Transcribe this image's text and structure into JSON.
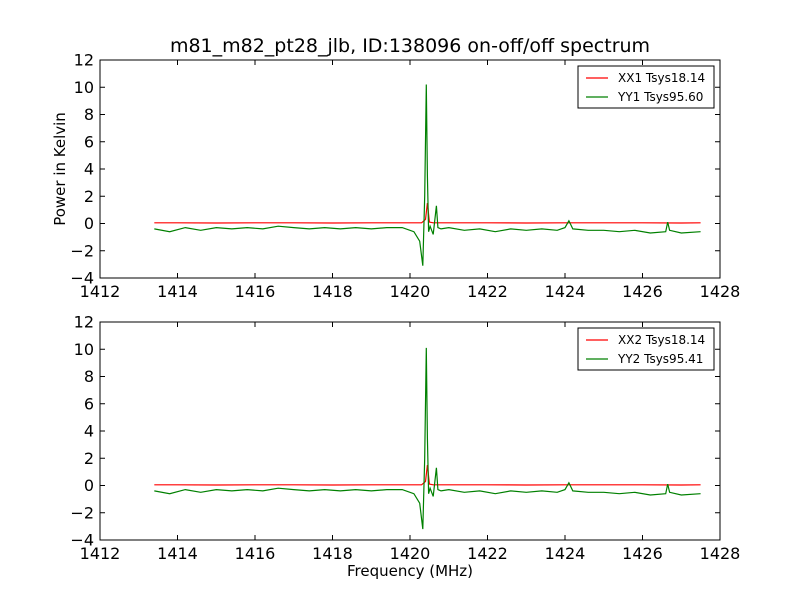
{
  "figure": {
    "title": "m81_m82_pt28_jlb, ID:138096 on-off/off spectrum",
    "xlabel": "Frequency (MHz)",
    "ylabel": "Power in Kelvin"
  },
  "chart_data": [
    {
      "type": "line",
      "title": "m81_m82_pt28_jlb, ID:138096 on-off/off spectrum",
      "xlabel": "",
      "ylabel": "Power in Kelvin",
      "xlim": [
        1412,
        1428
      ],
      "ylim": [
        -4,
        12
      ],
      "xticks": [
        "1412",
        "1414",
        "1416",
        "1418",
        "1420",
        "1422",
        "1424",
        "1426",
        "1428"
      ],
      "yticks": [
        "−4",
        "−2",
        "0",
        "2",
        "4",
        "6",
        "8",
        "10",
        "12"
      ],
      "legend": "top-right",
      "grid": false,
      "series": [
        {
          "name": "XX1 Tsys18.14",
          "color": "#ff0000",
          "x": [
            1413.4,
            1414.0,
            1415.0,
            1416.0,
            1417.0,
            1418.0,
            1419.0,
            1420.0,
            1420.3,
            1420.4,
            1420.45,
            1420.5,
            1420.6,
            1421.0,
            1422.0,
            1423.0,
            1424.0,
            1425.0,
            1426.0,
            1427.0,
            1427.5
          ],
          "y": [
            0.05,
            0.05,
            0.04,
            0.05,
            0.05,
            0.04,
            0.05,
            0.05,
            0.05,
            0.3,
            1.5,
            0.1,
            0.05,
            0.05,
            0.05,
            0.04,
            0.05,
            0.05,
            0.05,
            0.04,
            0.05
          ]
        },
        {
          "name": "YY1 Tsys95.60",
          "color": "#008000",
          "x": [
            1413.4,
            1413.8,
            1414.2,
            1414.6,
            1415.0,
            1415.4,
            1415.8,
            1416.2,
            1416.6,
            1417.0,
            1417.4,
            1417.8,
            1418.2,
            1418.6,
            1419.0,
            1419.4,
            1419.8,
            1420.1,
            1420.25,
            1420.33,
            1420.38,
            1420.42,
            1420.45,
            1420.48,
            1420.52,
            1420.6,
            1420.68,
            1420.72,
            1420.8,
            1421.0,
            1421.4,
            1421.8,
            1422.2,
            1422.6,
            1423.0,
            1423.4,
            1423.8,
            1424.0,
            1424.1,
            1424.2,
            1424.6,
            1425.0,
            1425.4,
            1425.8,
            1426.2,
            1426.6,
            1426.65,
            1426.7,
            1427.0,
            1427.5
          ],
          "y": [
            -0.4,
            -0.6,
            -0.3,
            -0.5,
            -0.3,
            -0.4,
            -0.3,
            -0.4,
            -0.2,
            -0.3,
            -0.4,
            -0.3,
            -0.4,
            -0.3,
            -0.4,
            -0.3,
            -0.3,
            -0.6,
            -1.3,
            -3.1,
            2.0,
            10.2,
            3.5,
            -0.6,
            -0.2,
            -0.8,
            1.3,
            -0.3,
            -0.4,
            -0.3,
            -0.5,
            -0.4,
            -0.6,
            -0.4,
            -0.5,
            -0.4,
            -0.5,
            -0.3,
            0.2,
            -0.4,
            -0.5,
            -0.5,
            -0.6,
            -0.5,
            -0.7,
            -0.6,
            0.1,
            -0.5,
            -0.7,
            -0.6
          ]
        }
      ]
    },
    {
      "type": "line",
      "title": "",
      "xlabel": "Frequency (MHz)",
      "ylabel": "",
      "xlim": [
        1412,
        1428
      ],
      "ylim": [
        -4,
        12
      ],
      "xticks": [
        "1412",
        "1414",
        "1416",
        "1418",
        "1420",
        "1422",
        "1424",
        "1426",
        "1428"
      ],
      "yticks": [
        "−4",
        "−2",
        "0",
        "2",
        "4",
        "6",
        "8",
        "10",
        "12"
      ],
      "legend": "top-right",
      "grid": false,
      "series": [
        {
          "name": "XX2 Tsys18.14",
          "color": "#ff0000",
          "x": [
            1413.4,
            1414.0,
            1415.0,
            1416.0,
            1417.0,
            1418.0,
            1419.0,
            1420.0,
            1420.3,
            1420.4,
            1420.45,
            1420.5,
            1420.6,
            1421.0,
            1422.0,
            1423.0,
            1424.0,
            1425.0,
            1426.0,
            1427.0,
            1427.5
          ],
          "y": [
            0.05,
            0.05,
            0.04,
            0.05,
            0.05,
            0.04,
            0.05,
            0.05,
            0.05,
            0.3,
            1.5,
            0.1,
            0.05,
            0.05,
            0.05,
            0.04,
            0.05,
            0.05,
            0.05,
            0.04,
            0.05
          ]
        },
        {
          "name": "YY2 Tsys95.41",
          "color": "#008000",
          "x": [
            1413.4,
            1413.8,
            1414.2,
            1414.6,
            1415.0,
            1415.4,
            1415.8,
            1416.2,
            1416.6,
            1417.0,
            1417.4,
            1417.8,
            1418.2,
            1418.6,
            1419.0,
            1419.4,
            1419.8,
            1420.1,
            1420.25,
            1420.33,
            1420.38,
            1420.42,
            1420.45,
            1420.48,
            1420.52,
            1420.6,
            1420.68,
            1420.72,
            1420.8,
            1421.0,
            1421.4,
            1421.8,
            1422.2,
            1422.6,
            1423.0,
            1423.4,
            1423.8,
            1424.0,
            1424.1,
            1424.2,
            1424.6,
            1425.0,
            1425.4,
            1425.8,
            1426.2,
            1426.6,
            1426.65,
            1426.7,
            1427.0,
            1427.5
          ],
          "y": [
            -0.4,
            -0.6,
            -0.3,
            -0.5,
            -0.3,
            -0.4,
            -0.3,
            -0.4,
            -0.2,
            -0.3,
            -0.4,
            -0.3,
            -0.4,
            -0.3,
            -0.4,
            -0.3,
            -0.3,
            -0.6,
            -1.3,
            -3.2,
            2.0,
            10.1,
            3.5,
            -0.6,
            -0.2,
            -0.8,
            1.3,
            -0.3,
            -0.4,
            -0.3,
            -0.5,
            -0.4,
            -0.6,
            -0.4,
            -0.5,
            -0.4,
            -0.5,
            -0.3,
            0.2,
            -0.4,
            -0.5,
            -0.5,
            -0.6,
            -0.5,
            -0.7,
            -0.6,
            0.1,
            -0.5,
            -0.7,
            -0.6
          ]
        }
      ]
    }
  ]
}
